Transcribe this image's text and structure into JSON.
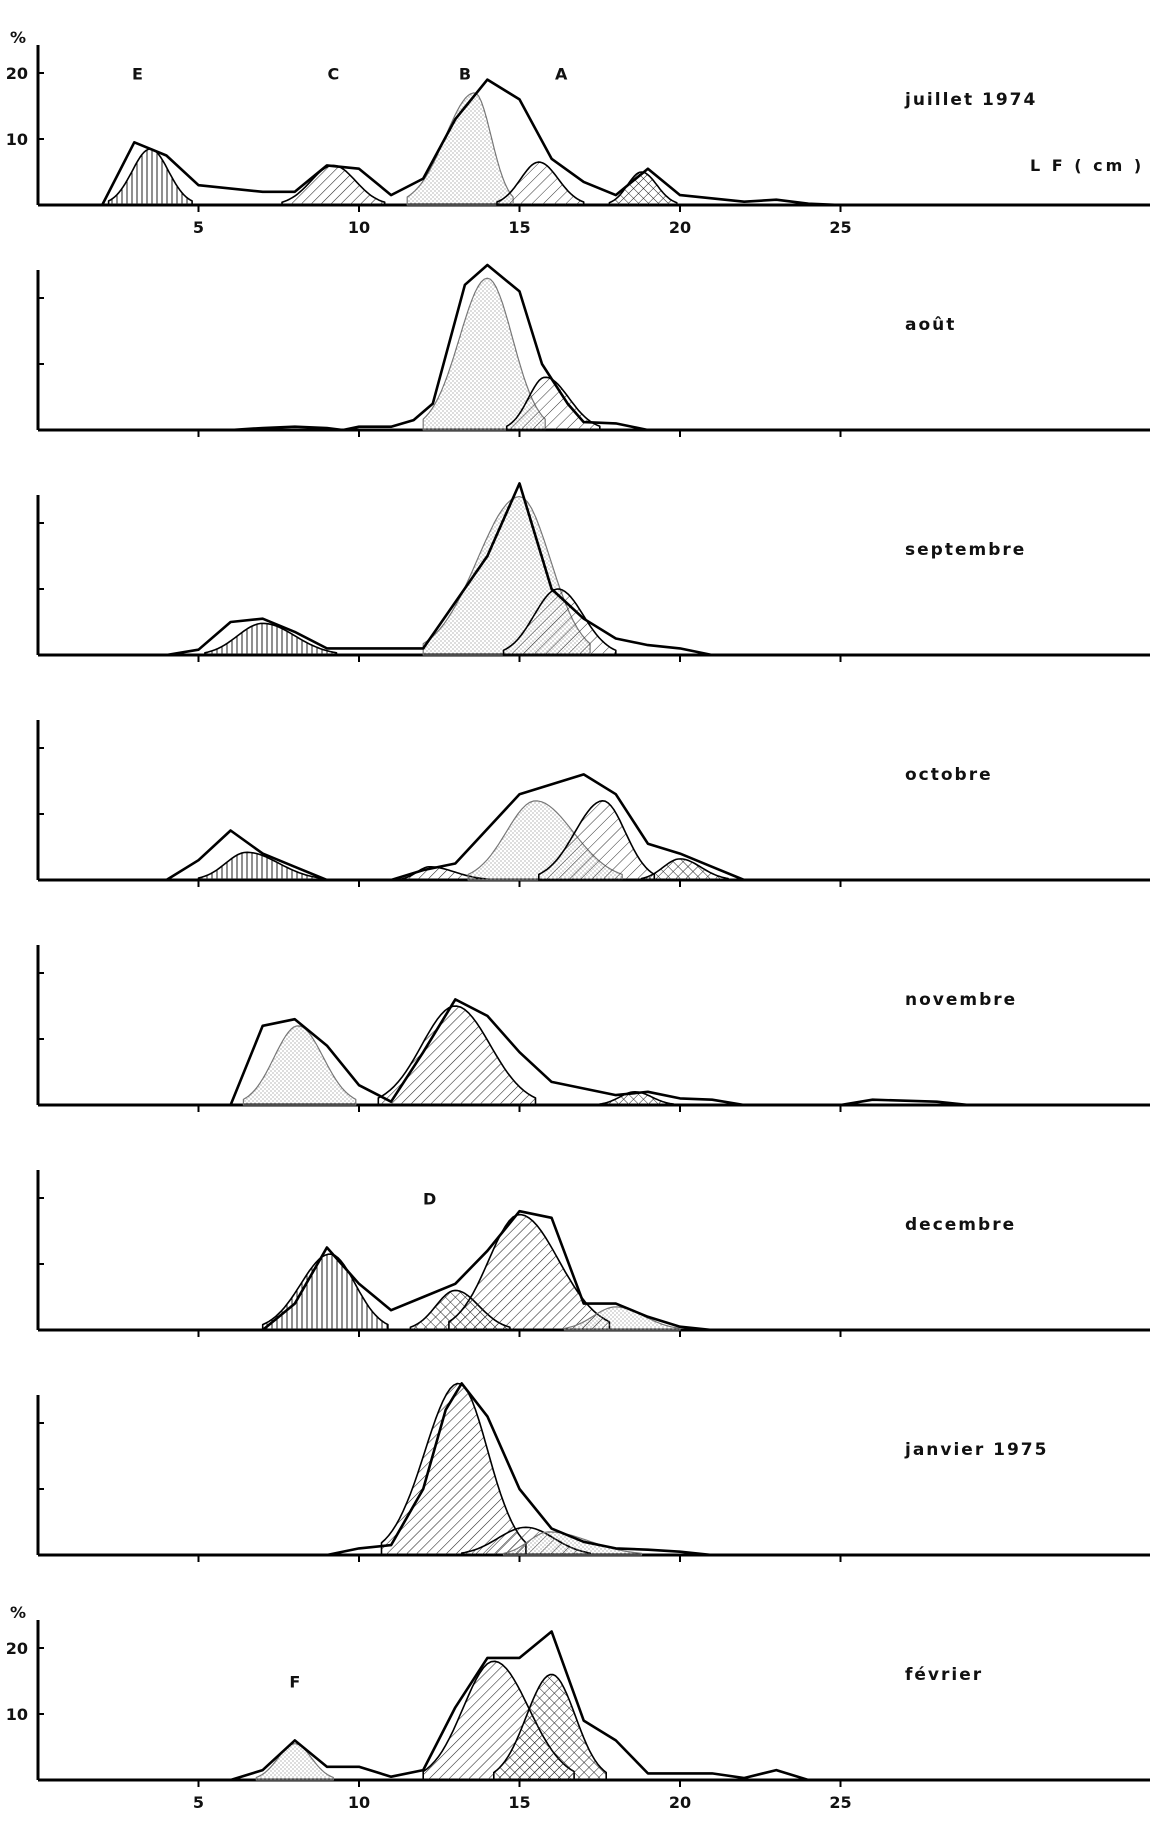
{
  "axis": {
    "unit_label": "L F ( cm )",
    "y_unit": "%",
    "x_ticks": [
      5,
      10,
      15,
      20,
      25
    ],
    "y_ticks": [
      10,
      20
    ]
  },
  "chart_data": {
    "type": "area",
    "x_range": [
      0,
      30
    ],
    "y_range": [
      0,
      25
    ],
    "panels": [
      {
        "month": "juillet 1974",
        "show_y_labels": true,
        "show_x_labels": true,
        "show_unit": true,
        "total": [
          [
            2,
            0
          ],
          [
            3,
            9.5
          ],
          [
            4,
            7.5
          ],
          [
            5,
            3
          ],
          [
            7,
            2
          ],
          [
            8,
            2
          ],
          [
            9,
            6
          ],
          [
            10,
            5.5
          ],
          [
            11,
            1.5
          ],
          [
            12,
            4
          ],
          [
            13,
            13
          ],
          [
            14,
            19
          ],
          [
            15,
            16
          ],
          [
            16,
            7
          ],
          [
            17,
            3.5
          ],
          [
            18,
            1.5
          ],
          [
            19,
            5.5
          ],
          [
            20,
            1.5
          ],
          [
            22,
            0.5
          ],
          [
            23,
            0.8
          ],
          [
            24,
            0.2
          ],
          [
            25,
            0
          ]
        ],
        "cohorts": [
          {
            "name": "E",
            "pattern": "vert",
            "peak": 3.5,
            "height": 8.5,
            "left": 2.2,
            "right": 4.8
          },
          {
            "name": "C",
            "pattern": "hatch",
            "peak": 9.2,
            "height": 6,
            "left": 7.6,
            "right": 10.8
          },
          {
            "name": "B",
            "pattern": "dots",
            "peak": 13.6,
            "height": 17,
            "left": 11.5,
            "right": 14.8
          },
          {
            "name": "A",
            "pattern": "cross-light",
            "peak": 15.6,
            "height": 6.5,
            "left": 14.3,
            "right": 17
          },
          {
            "name": "",
            "pattern": "cross",
            "peak": 18.8,
            "height": 5,
            "left": 17.8,
            "right": 19.9
          }
        ],
        "labels": [
          {
            "text": "E",
            "x": 3.1,
            "y": 19
          },
          {
            "text": "C",
            "x": 9.2,
            "y": 19
          },
          {
            "text": "B",
            "x": 13.3,
            "y": 19
          },
          {
            "text": "A",
            "x": 16.3,
            "y": 19
          }
        ]
      },
      {
        "month": "août",
        "show_y_labels": false,
        "show_x_labels": false,
        "show_unit": false,
        "total": [
          [
            6,
            0
          ],
          [
            7,
            0.3
          ],
          [
            8,
            0.5
          ],
          [
            9,
            0.3
          ],
          [
            9.5,
            0
          ],
          [
            10,
            0.5
          ],
          [
            11,
            0.5
          ],
          [
            11.7,
            1.5
          ],
          [
            12.3,
            4
          ],
          [
            13.3,
            22
          ],
          [
            14,
            25
          ],
          [
            15,
            21
          ],
          [
            15.7,
            10
          ],
          [
            16.5,
            4
          ],
          [
            17,
            1.2
          ],
          [
            18,
            1
          ],
          [
            19,
            0
          ]
        ],
        "cohorts": [
          {
            "name": "",
            "pattern": "dots",
            "peak": 14,
            "height": 23,
            "left": 12,
            "right": 15.8
          },
          {
            "name": "",
            "pattern": "cross-light",
            "peak": 15.8,
            "height": 8,
            "left": 14.6,
            "right": 17.5
          }
        ],
        "labels": []
      },
      {
        "month": "septembre",
        "show_y_labels": false,
        "show_x_labels": false,
        "show_unit": false,
        "total": [
          [
            4,
            0
          ],
          [
            5,
            0.8
          ],
          [
            6,
            5
          ],
          [
            7,
            5.5
          ],
          [
            8,
            3.5
          ],
          [
            9,
            1
          ],
          [
            10,
            1
          ],
          [
            12,
            1
          ],
          [
            14,
            15
          ],
          [
            15,
            26
          ],
          [
            16,
            10
          ],
          [
            17,
            5.5
          ],
          [
            18,
            2.5
          ],
          [
            19,
            1.5
          ],
          [
            20,
            1
          ],
          [
            21,
            0
          ]
        ],
        "cohorts": [
          {
            "name": "",
            "pattern": "vert",
            "peak": 7,
            "height": 4.8,
            "left": 5.2,
            "right": 9.3
          },
          {
            "name": "",
            "pattern": "dots",
            "peak": 15,
            "height": 24,
            "left": 12,
            "right": 17.2
          },
          {
            "name": "",
            "pattern": "cross-light",
            "peak": 16.2,
            "height": 10,
            "left": 14.5,
            "right": 18
          }
        ],
        "labels": []
      },
      {
        "month": "octobre",
        "show_y_labels": false,
        "show_x_labels": false,
        "show_unit": false,
        "total": [
          [
            4,
            0
          ],
          [
            5,
            3
          ],
          [
            6,
            7.5
          ],
          [
            7,
            4
          ],
          [
            8,
            2
          ],
          [
            9,
            0
          ],
          [
            11,
            0
          ],
          [
            12,
            1.5
          ],
          [
            13,
            2.5
          ],
          [
            15,
            13
          ],
          [
            17,
            16
          ],
          [
            18,
            13
          ],
          [
            19,
            5.5
          ],
          [
            20,
            4
          ],
          [
            21,
            2
          ],
          [
            22,
            0
          ]
        ],
        "cohorts": [
          {
            "name": "",
            "pattern": "vert",
            "peak": 6.5,
            "height": 4.2,
            "left": 5,
            "right": 8.8
          },
          {
            "name": "",
            "pattern": "hatch",
            "peak": 12.2,
            "height": 2,
            "left": 11.3,
            "right": 14
          },
          {
            "name": "",
            "pattern": "dots",
            "peak": 15.5,
            "height": 12,
            "left": 13.4,
            "right": 18.2
          },
          {
            "name": "",
            "pattern": "cross-light",
            "peak": 17.6,
            "height": 12,
            "left": 15.6,
            "right": 19.2
          },
          {
            "name": "",
            "pattern": "cross",
            "peak": 20,
            "height": 3.2,
            "left": 18.8,
            "right": 21.5
          }
        ],
        "labels": []
      },
      {
        "month": "novembre",
        "show_y_labels": false,
        "show_x_labels": false,
        "show_unit": false,
        "total": [
          [
            6,
            0
          ],
          [
            7,
            12
          ],
          [
            8,
            13
          ],
          [
            9,
            9
          ],
          [
            10,
            3
          ],
          [
            11,
            0.5
          ],
          [
            12,
            8
          ],
          [
            13,
            16
          ],
          [
            14,
            13.5
          ],
          [
            15,
            8
          ],
          [
            16,
            3.5
          ],
          [
            18,
            1.5
          ],
          [
            19,
            2
          ],
          [
            20,
            1
          ],
          [
            21,
            0.8
          ],
          [
            22,
            0
          ],
          [
            25,
            0
          ],
          [
            26,
            0.8
          ],
          [
            28,
            0.5
          ],
          [
            29,
            0
          ]
        ],
        "cohorts": [
          {
            "name": "",
            "pattern": "dots",
            "peak": 8.1,
            "height": 12,
            "left": 6.4,
            "right": 9.9
          },
          {
            "name": "",
            "pattern": "hatch",
            "peak": 13,
            "height": 15,
            "left": 10.6,
            "right": 15.5
          },
          {
            "name": "",
            "pattern": "cross",
            "peak": 18.6,
            "height": 2,
            "left": 17.5,
            "right": 19.8
          }
        ],
        "labels": []
      },
      {
        "month": "decembre",
        "show_y_labels": false,
        "show_x_labels": false,
        "show_unit": false,
        "total": [
          [
            7,
            0
          ],
          [
            8,
            4
          ],
          [
            9,
            12.5
          ],
          [
            10,
            7
          ],
          [
            11,
            3
          ],
          [
            12,
            5
          ],
          [
            13,
            7
          ],
          [
            14,
            12
          ],
          [
            15,
            18
          ],
          [
            16,
            17
          ],
          [
            17,
            4
          ],
          [
            18,
            4
          ],
          [
            19,
            2
          ],
          [
            20,
            0.5
          ],
          [
            21,
            0
          ]
        ],
        "cohorts": [
          {
            "name": "",
            "pattern": "vert",
            "peak": 9.1,
            "height": 11.5,
            "left": 7,
            "right": 10.9
          },
          {
            "name": "",
            "pattern": "cross",
            "peak": 13,
            "height": 6,
            "left": 11.6,
            "right": 14.7
          },
          {
            "name": "D",
            "pattern": "hatch",
            "peak": 15,
            "height": 17.5,
            "left": 12.8,
            "right": 17.8
          },
          {
            "name": "",
            "pattern": "dots",
            "peak": 18,
            "height": 3.5,
            "left": 16.4,
            "right": 20
          }
        ],
        "labels": [
          {
            "text": "D",
            "x": 12.2,
            "y": 19
          }
        ]
      },
      {
        "month": "janvier 1975",
        "show_y_labels": false,
        "show_x_labels": false,
        "show_unit": false,
        "total": [
          [
            9,
            0
          ],
          [
            10,
            1
          ],
          [
            11,
            1.5
          ],
          [
            12,
            10
          ],
          [
            12.7,
            22
          ],
          [
            13.2,
            26
          ],
          [
            14,
            21
          ],
          [
            15,
            10
          ],
          [
            16,
            4
          ],
          [
            17,
            2
          ],
          [
            18,
            1
          ],
          [
            19,
            0.8
          ],
          [
            20,
            0.5
          ],
          [
            21,
            0
          ]
        ],
        "cohorts": [
          {
            "name": "",
            "pattern": "hatch",
            "peak": 13.1,
            "height": 26,
            "left": 10.7,
            "right": 15.2
          },
          {
            "name": "",
            "pattern": "cross-light",
            "peak": 15.2,
            "height": 4.2,
            "left": 13.2,
            "right": 17.2
          },
          {
            "name": "",
            "pattern": "dots",
            "peak": 15.9,
            "height": 3.5,
            "left": 14.5,
            "right": 18.8
          }
        ],
        "labels": []
      },
      {
        "month": "février",
        "show_y_labels": true,
        "show_x_labels": true,
        "show_unit": false,
        "total": [
          [
            6,
            0
          ],
          [
            7,
            1.5
          ],
          [
            8,
            6
          ],
          [
            9,
            2
          ],
          [
            10,
            2
          ],
          [
            11,
            0.5
          ],
          [
            12,
            1.5
          ],
          [
            13,
            11
          ],
          [
            14,
            18.5
          ],
          [
            15,
            18.5
          ],
          [
            16,
            22.5
          ],
          [
            17,
            9
          ],
          [
            18,
            6
          ],
          [
            19,
            1
          ],
          [
            20,
            1
          ],
          [
            21,
            1
          ],
          [
            22,
            0.3
          ],
          [
            23,
            1.5
          ],
          [
            24,
            0
          ]
        ],
        "cohorts": [
          {
            "name": "F",
            "pattern": "dots",
            "peak": 8,
            "height": 5.5,
            "left": 6.8,
            "right": 9.2
          },
          {
            "name": "",
            "pattern": "hatch",
            "peak": 14.2,
            "height": 18,
            "left": 12,
            "right": 16.7
          },
          {
            "name": "",
            "pattern": "cross",
            "peak": 16,
            "height": 16,
            "left": 14.2,
            "right": 17.7
          }
        ],
        "labels": [
          {
            "text": "F",
            "x": 8,
            "y": 14
          }
        ]
      }
    ]
  }
}
